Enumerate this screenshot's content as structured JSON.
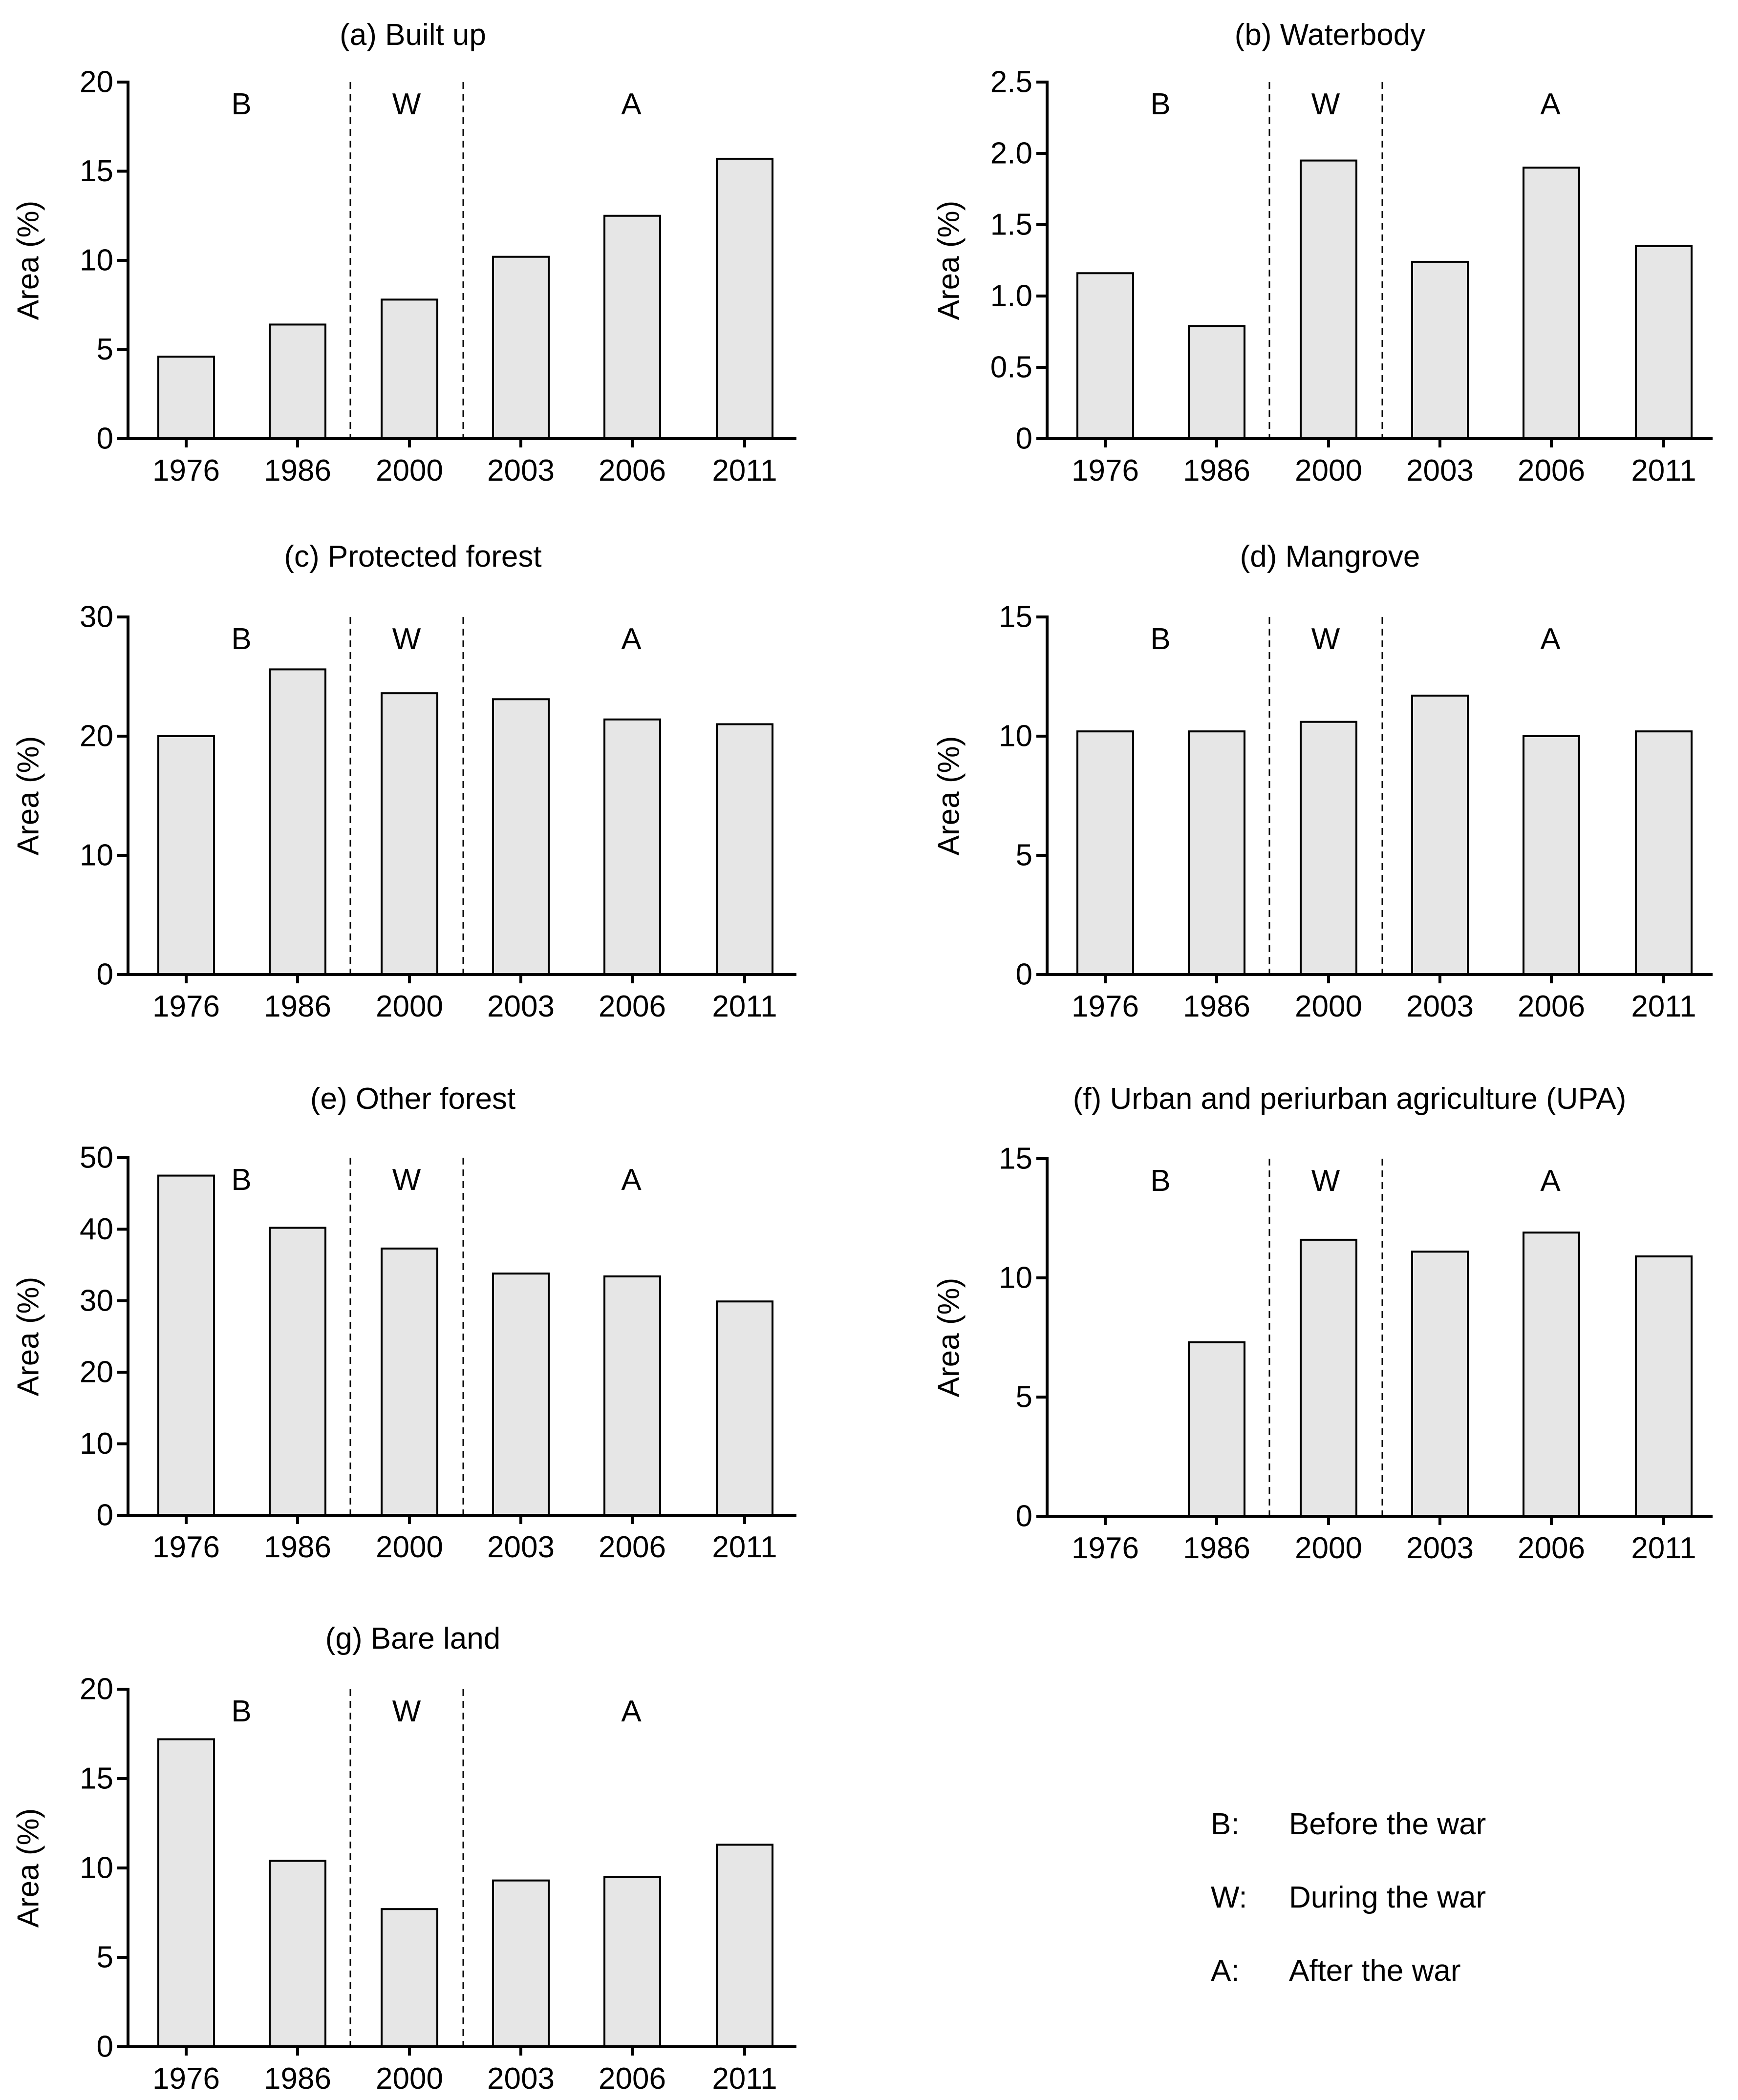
{
  "chart_data": [
    {
      "type": "bar",
      "title": "(a) Built up",
      "ylabel": "Area (%)",
      "xlabel": "",
      "ylim": [
        0,
        20
      ],
      "yticks": [
        "0",
        "5",
        "10",
        "15",
        "20"
      ],
      "categories": [
        "1976",
        "1986",
        "2000",
        "2003",
        "2006",
        "2011"
      ],
      "values": [
        4.6,
        6.4,
        7.8,
        10.2,
        12.5,
        15.7
      ],
      "periods": [
        "B",
        "W",
        "A"
      ]
    },
    {
      "type": "bar",
      "title": "(b) Waterbody",
      "ylabel": "Area (%)",
      "xlabel": "",
      "ylim": [
        0,
        2.5
      ],
      "yticks": [
        "0",
        "0.5",
        "1.0",
        "1.5",
        "2.0",
        "2.5"
      ],
      "categories": [
        "1976",
        "1986",
        "2000",
        "2003",
        "2006",
        "2011"
      ],
      "values": [
        1.16,
        0.79,
        1.95,
        1.24,
        1.9,
        1.35
      ],
      "periods": [
        "B",
        "W",
        "A"
      ]
    },
    {
      "type": "bar",
      "title": "(c) Protected forest",
      "ylabel": "Area (%)",
      "xlabel": "",
      "ylim": [
        0,
        30
      ],
      "yticks": [
        "0",
        "10",
        "20",
        "30"
      ],
      "categories": [
        "1976",
        "1986",
        "2000",
        "2003",
        "2006",
        "2011"
      ],
      "values": [
        20.0,
        25.6,
        23.6,
        23.1,
        21.4,
        21.0
      ],
      "periods": [
        "B",
        "W",
        "A"
      ]
    },
    {
      "type": "bar",
      "title": "(d) Mangrove",
      "ylabel": "Area (%)",
      "xlabel": "",
      "ylim": [
        0,
        15
      ],
      "yticks": [
        "0",
        "5",
        "10",
        "15"
      ],
      "categories": [
        "1976",
        "1986",
        "2000",
        "2003",
        "2006",
        "2011"
      ],
      "values": [
        10.2,
        10.2,
        10.6,
        11.7,
        10.0,
        10.2
      ],
      "periods": [
        "B",
        "W",
        "A"
      ]
    },
    {
      "type": "bar",
      "title": "(e) Other forest",
      "ylabel": "Area (%)",
      "xlabel": "",
      "ylim": [
        0,
        50
      ],
      "yticks": [
        "0",
        "10",
        "20",
        "30",
        "40",
        "50"
      ],
      "categories": [
        "1976",
        "1986",
        "2000",
        "2003",
        "2006",
        "2011"
      ],
      "values": [
        47.5,
        40.2,
        37.3,
        33.8,
        33.4,
        29.9
      ],
      "periods": [
        "B",
        "W",
        "A"
      ]
    },
    {
      "type": "bar",
      "title": "(f) Urban and periurban agriculture (UPA)",
      "ylabel": "Area (%)",
      "xlabel": "",
      "ylim": [
        0,
        15
      ],
      "yticks": [
        "0",
        "5",
        "10",
        "15"
      ],
      "categories": [
        "1976",
        "1986",
        "2000",
        "2003",
        "2006",
        "2011"
      ],
      "values": [
        0,
        7.3,
        11.6,
        11.1,
        11.9,
        10.9
      ],
      "periods": [
        "B",
        "W",
        "A"
      ]
    },
    {
      "type": "bar",
      "title": "(g) Bare land",
      "ylabel": "Area (%)",
      "xlabel": "",
      "ylim": [
        0,
        20
      ],
      "yticks": [
        "0",
        "5",
        "10",
        "15",
        "20"
      ],
      "categories": [
        "1976",
        "1986",
        "2000",
        "2003",
        "2006",
        "2011"
      ],
      "values": [
        17.2,
        10.4,
        7.7,
        9.3,
        9.5,
        11.3
      ],
      "periods": [
        "B",
        "W",
        "A"
      ]
    }
  ],
  "legend": [
    {
      "key": "B:",
      "text": "Before the war"
    },
    {
      "key": "W:",
      "text": "During the war"
    },
    {
      "key": "A:",
      "text": "After the war"
    }
  ]
}
